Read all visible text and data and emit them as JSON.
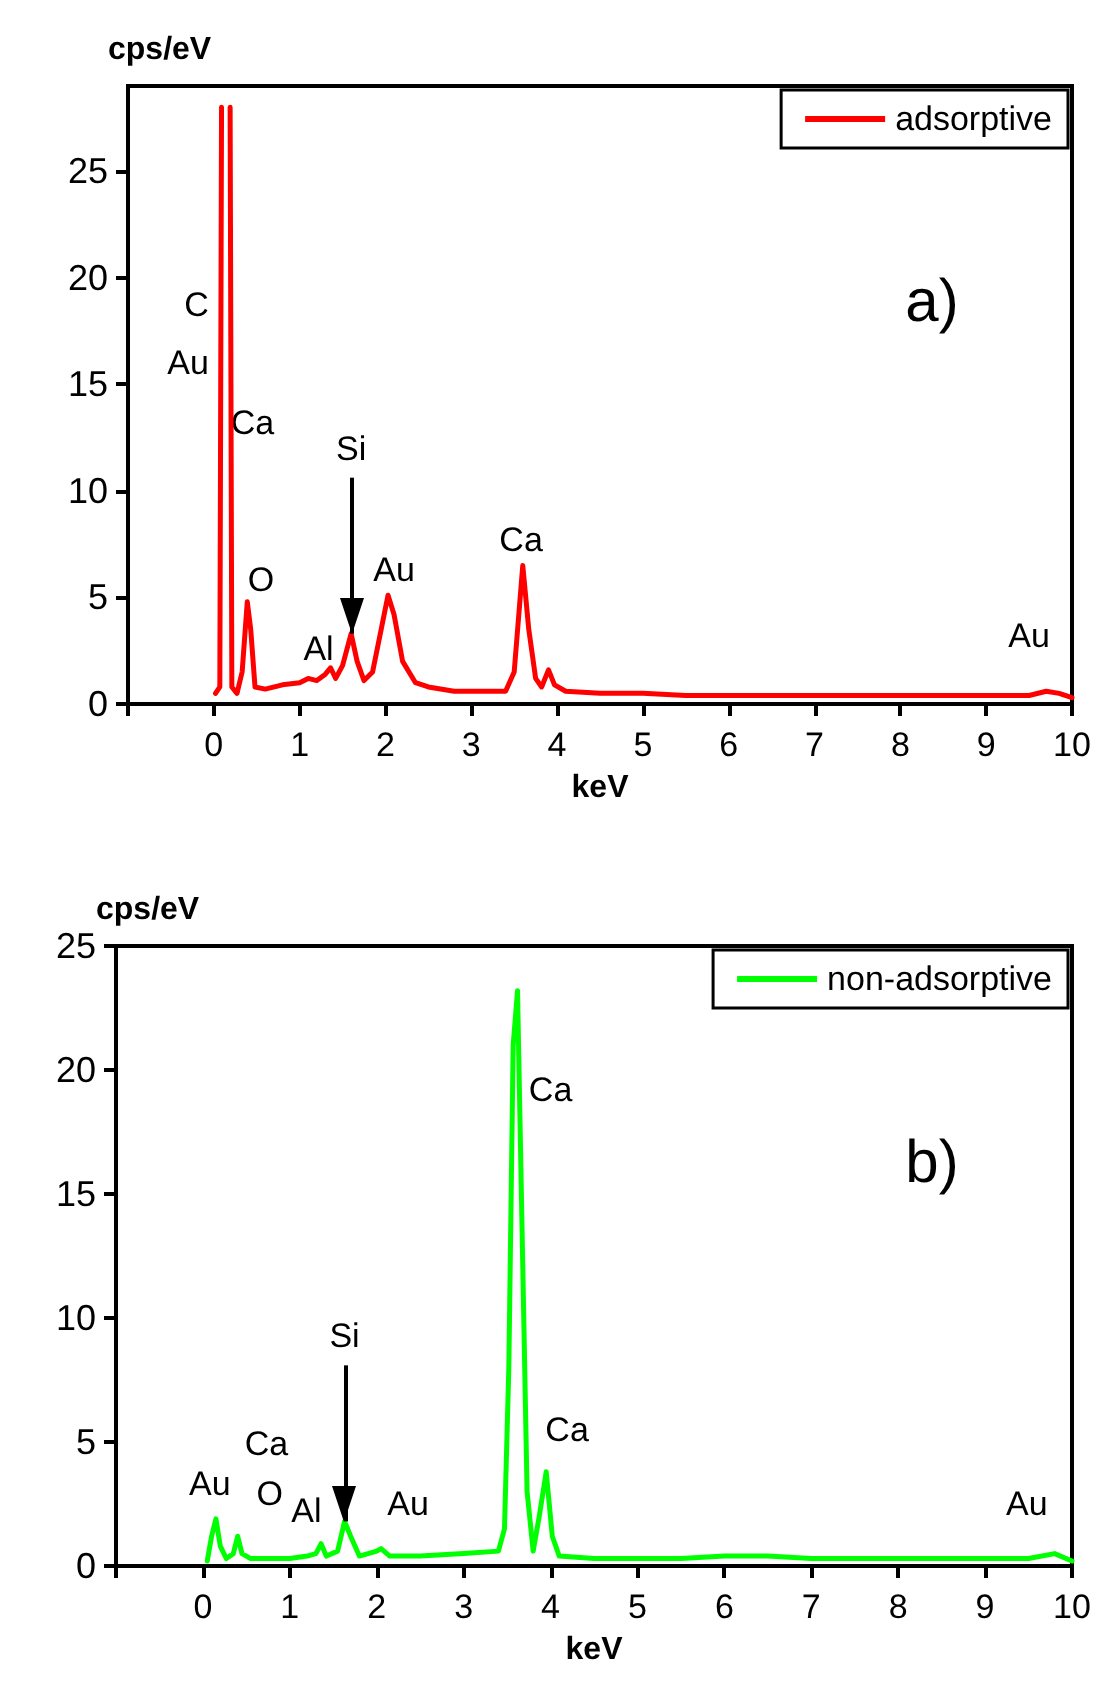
{
  "chart_data": [
    {
      "type": "line",
      "xlabel": "keV",
      "ylabel": "cps/eV",
      "xlim": [
        -1,
        10
      ],
      "xticks": [
        {
          "value": -1,
          "label": null
        },
        0,
        1,
        2,
        3,
        4,
        5,
        6,
        7,
        8,
        9,
        10
      ],
      "ylim": [
        0,
        29
      ],
      "yticks": [
        0,
        5,
        10,
        15,
        20,
        25
      ],
      "grid": false,
      "legend": "top right",
      "marker": "none",
      "line_style": "solid",
      "x": [
        0.02,
        0.07,
        0.09,
        0.1,
        0.18,
        0.19,
        0.21,
        0.27,
        0.33,
        0.39,
        0.43,
        0.48,
        0.6,
        0.8,
        1.0,
        1.1,
        1.2,
        1.3,
        1.36,
        1.42,
        1.5,
        1.6,
        1.67,
        1.75,
        1.85,
        1.95,
        2.03,
        2.1,
        2.2,
        2.35,
        2.5,
        2.8,
        3.1,
        3.4,
        3.5,
        3.55,
        3.6,
        3.67,
        3.75,
        3.82,
        3.9,
        3.97,
        4.1,
        4.5,
        5,
        5.5,
        6,
        6.5,
        7,
        7.5,
        8,
        8.5,
        9,
        9.5,
        9.7,
        9.85,
        10
      ],
      "series": [
        {
          "name": "adsorptive",
          "color": "#ff0000",
          "values": [
            0.5,
            0.8,
            28,
            null,
            null,
            28,
            0.8,
            0.5,
            1.5,
            4.8,
            3.5,
            0.8,
            0.7,
            0.9,
            1.0,
            1.2,
            1.1,
            1.4,
            1.7,
            1.2,
            1.8,
            3.3,
            2.0,
            1.1,
            1.5,
            3.5,
            5.1,
            4.2,
            2.0,
            1.0,
            0.8,
            0.6,
            0.6,
            0.6,
            1.5,
            4.0,
            6.5,
            3.5,
            1.2,
            0.8,
            1.6,
            0.9,
            0.6,
            0.5,
            0.5,
            0.4,
            0.4,
            0.4,
            0.4,
            0.4,
            0.4,
            0.4,
            0.4,
            0.4,
            0.6,
            0.5,
            0.3
          ]
        }
      ],
      "annotations": [
        "a)",
        "C",
        "Au",
        "Ca",
        "O",
        "Al",
        {
          "text": "Si",
          "x": 1.6,
          "y": 3.3
        },
        "Au",
        "Ca",
        "Au"
      ]
    },
    {
      "type": "line",
      "xlabel": "keV",
      "ylabel": "cps/eV",
      "xlim": [
        -1,
        10
      ],
      "xticks": [
        {
          "value": -1,
          "label": null
        },
        0,
        1,
        2,
        3,
        4,
        5,
        6,
        7,
        8,
        9,
        10
      ],
      "ylim": [
        0,
        25
      ],
      "yticks": [
        0,
        5,
        10,
        15,
        20,
        25
      ],
      "grid": false,
      "legend": "top right",
      "marker": "none",
      "line_style": "solid",
      "x": [
        0.05,
        0.1,
        0.15,
        0.2,
        0.27,
        0.35,
        0.4,
        0.45,
        0.55,
        0.8,
        1.0,
        1.2,
        1.3,
        1.36,
        1.42,
        1.55,
        1.63,
        1.7,
        1.8,
        2.0,
        2.05,
        2.15,
        2.5,
        3.0,
        3.4,
        3.47,
        3.52,
        3.57,
        3.62,
        3.67,
        3.73,
        3.8,
        3.87,
        3.95,
        4.02,
        4.1,
        4.5,
        5,
        5.5,
        6,
        6.5,
        7,
        7.5,
        8,
        8.5,
        9,
        9.5,
        9.8,
        10
      ],
      "series": [
        {
          "name": "non-adsorptive",
          "color": "#00ff00",
          "values": [
            0.2,
            1.2,
            1.9,
            0.8,
            0.3,
            0.5,
            1.2,
            0.5,
            0.3,
            0.3,
            0.3,
            0.4,
            0.5,
            0.9,
            0.4,
            0.6,
            1.8,
            1.2,
            0.4,
            0.6,
            0.7,
            0.4,
            0.4,
            0.5,
            0.6,
            1.5,
            8,
            21,
            23.2,
            14,
            3,
            0.6,
            2,
            3.8,
            1.2,
            0.4,
            0.3,
            0.3,
            0.3,
            0.4,
            0.4,
            0.3,
            0.3,
            0.3,
            0.3,
            0.3,
            0.3,
            0.5,
            0.2
          ]
        }
      ],
      "annotations": [
        "b)",
        "Au",
        "Ca",
        "O",
        "Al",
        {
          "text": "Si",
          "x": 1.63,
          "y": 1.8
        },
        "Au",
        "Ca",
        "Ca",
        "Au"
      ]
    }
  ]
}
